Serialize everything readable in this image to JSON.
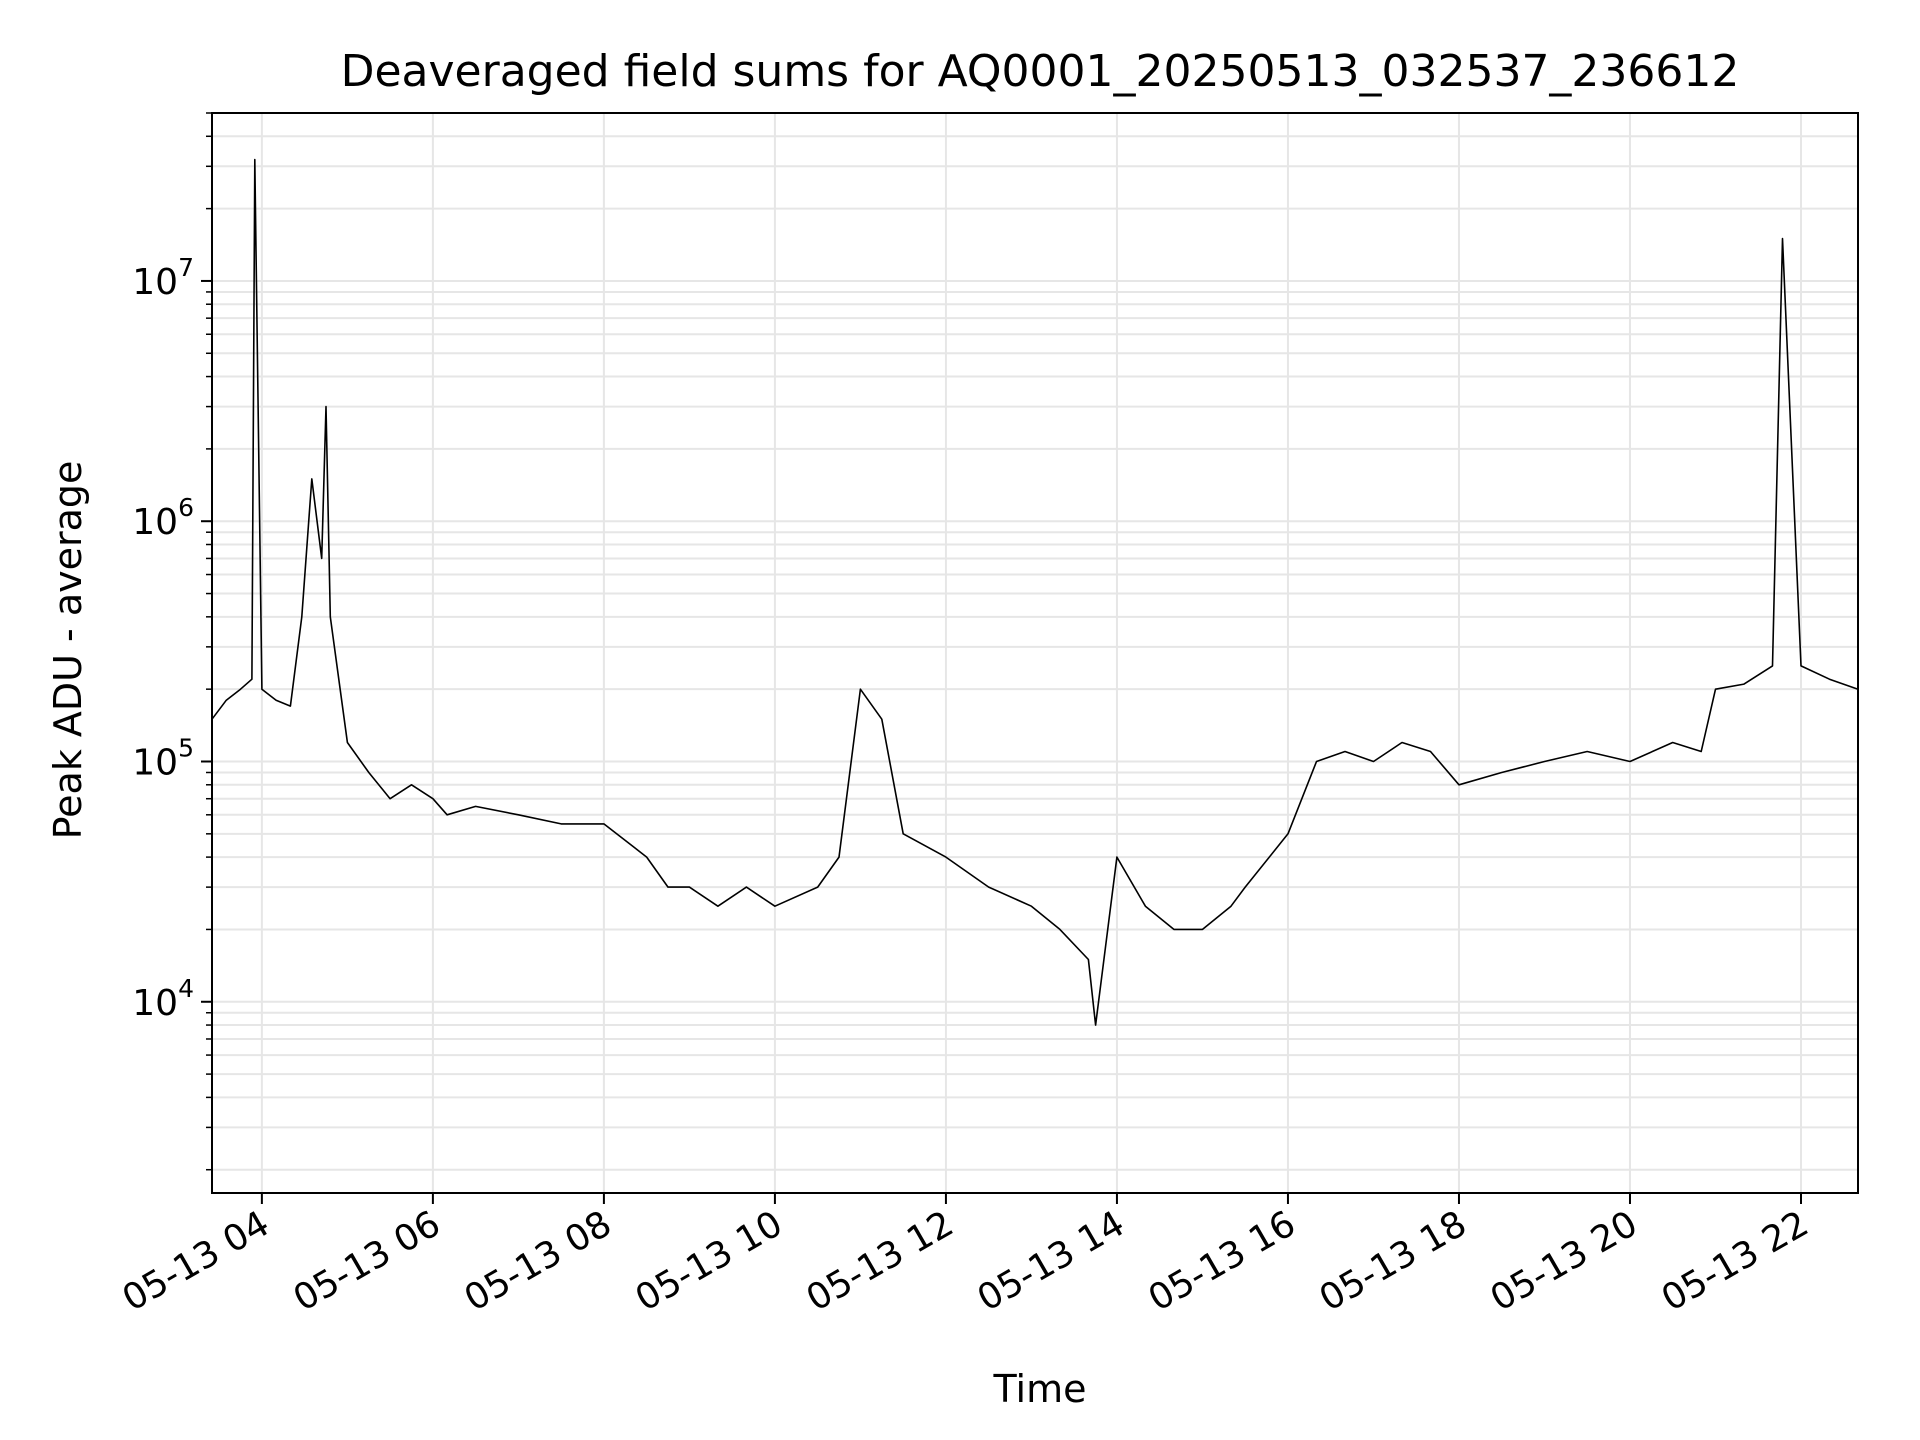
{
  "chart_data": {
    "type": "line",
    "title": "Deaveraged field sums for AQ0001_20250513_032537_236612",
    "xlabel": "Time",
    "ylabel": "Peak ADU - average",
    "yscale": "log",
    "grid": true,
    "line_color": "#000000",
    "grid_color": "#e6e6e6",
    "xlim": [
      "2025-05-13 03:25",
      "2025-05-13 22:40"
    ],
    "ylim": [
      1600,
      50000000
    ],
    "x_ticks": [
      {
        "value": "2025-05-13 04:00",
        "label": "05-13 04"
      },
      {
        "value": "2025-05-13 06:00",
        "label": "05-13 06"
      },
      {
        "value": "2025-05-13 08:00",
        "label": "05-13 08"
      },
      {
        "value": "2025-05-13 10:00",
        "label": "05-13 10"
      },
      {
        "value": "2025-05-13 12:00",
        "label": "05-13 12"
      },
      {
        "value": "2025-05-13 14:00",
        "label": "05-13 14"
      },
      {
        "value": "2025-05-13 16:00",
        "label": "05-13 16"
      },
      {
        "value": "2025-05-13 18:00",
        "label": "05-13 18"
      },
      {
        "value": "2025-05-13 20:00",
        "label": "05-13 20"
      },
      {
        "value": "2025-05-13 22:00",
        "label": "05-13 22"
      }
    ],
    "y_ticks": [
      {
        "value": 10000,
        "base": "10",
        "exp": "4"
      },
      {
        "value": 100000,
        "base": "10",
        "exp": "5"
      },
      {
        "value": 1000000,
        "base": "10",
        "exp": "6"
      },
      {
        "value": 10000000,
        "base": "10",
        "exp": "7"
      }
    ],
    "series": [
      {
        "x": [
          "2025-05-13 03:25",
          "2025-05-13 03:35",
          "2025-05-13 03:45",
          "2025-05-13 03:53",
          "2025-05-13 03:55",
          "2025-05-13 04:00",
          "2025-05-13 04:10",
          "2025-05-13 04:20",
          "2025-05-13 04:28",
          "2025-05-13 04:35",
          "2025-05-13 04:42",
          "2025-05-13 04:45",
          "2025-05-13 04:48",
          "2025-05-13 05:00",
          "2025-05-13 05:15",
          "2025-05-13 05:30",
          "2025-05-13 05:45",
          "2025-05-13 06:00",
          "2025-05-13 06:10",
          "2025-05-13 06:30",
          "2025-05-13 07:00",
          "2025-05-13 07:30",
          "2025-05-13 08:00",
          "2025-05-13 08:30",
          "2025-05-13 08:45",
          "2025-05-13 09:00",
          "2025-05-13 09:20",
          "2025-05-13 09:40",
          "2025-05-13 10:00",
          "2025-05-13 10:30",
          "2025-05-13 10:45",
          "2025-05-13 11:00",
          "2025-05-13 11:15",
          "2025-05-13 11:30",
          "2025-05-13 12:00",
          "2025-05-13 12:30",
          "2025-05-13 13:00",
          "2025-05-13 13:20",
          "2025-05-13 13:40",
          "2025-05-13 13:45",
          "2025-05-13 14:00",
          "2025-05-13 14:20",
          "2025-05-13 14:40",
          "2025-05-13 15:00",
          "2025-05-13 15:20",
          "2025-05-13 15:30",
          "2025-05-13 16:00",
          "2025-05-13 16:20",
          "2025-05-13 16:40",
          "2025-05-13 17:00",
          "2025-05-13 17:20",
          "2025-05-13 17:40",
          "2025-05-13 18:00",
          "2025-05-13 18:30",
          "2025-05-13 19:00",
          "2025-05-13 19:30",
          "2025-05-13 20:00",
          "2025-05-13 20:30",
          "2025-05-13 20:50",
          "2025-05-13 21:00",
          "2025-05-13 21:20",
          "2025-05-13 21:40",
          "2025-05-13 21:47",
          "2025-05-13 22:00",
          "2025-05-13 22:20",
          "2025-05-13 22:40"
        ],
        "y": [
          150000,
          180000,
          200000,
          220000,
          32000000,
          200000,
          180000,
          170000,
          400000,
          1500000,
          700000,
          3000000,
          400000,
          120000,
          90000,
          70000,
          80000,
          70000,
          60000,
          65000,
          60000,
          55000,
          55000,
          40000,
          30000,
          30000,
          25000,
          30000,
          25000,
          30000,
          40000,
          200000,
          150000,
          50000,
          40000,
          30000,
          25000,
          20000,
          15000,
          8000,
          40000,
          25000,
          20000,
          20000,
          25000,
          30000,
          50000,
          100000,
          110000,
          100000,
          120000,
          110000,
          80000,
          90000,
          100000,
          110000,
          100000,
          120000,
          110000,
          200000,
          210000,
          250000,
          15000000,
          250000,
          220000,
          200000
        ]
      }
    ]
  }
}
